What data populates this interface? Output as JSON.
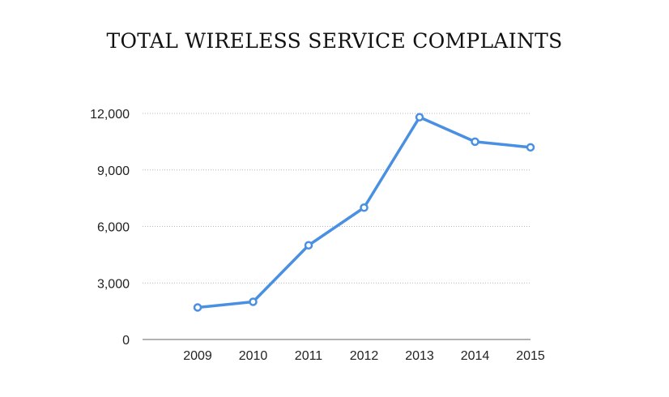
{
  "chart_data": {
    "type": "line",
    "title": "TOTAL WIRELESS SERVICE COMPLAINTS",
    "xlabel": "",
    "ylabel": "",
    "categories": [
      "2009",
      "2010",
      "2011",
      "2012",
      "2013",
      "2014",
      "2015"
    ],
    "series": [
      {
        "name": "Total wireless service complaints",
        "values": [
          1700,
          2000,
          5000,
          7000,
          11800,
          10500,
          10200
        ],
        "color": "#4a90e2"
      }
    ],
    "ylim": [
      0,
      12000
    ],
    "yticks": [
      0,
      3000,
      6000,
      9000,
      12000
    ],
    "ytick_labels": [
      "0",
      "3,000",
      "6,000",
      "9,000",
      "12,000"
    ],
    "grid": true,
    "legend": "none"
  }
}
